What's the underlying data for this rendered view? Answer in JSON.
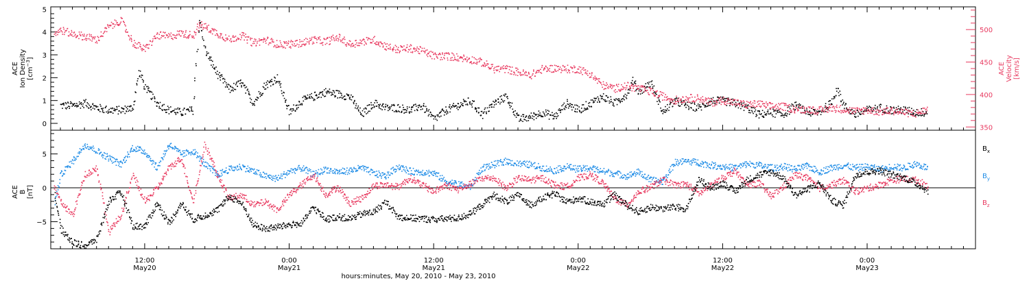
{
  "figure": {
    "xlabel": "hours:minutes, May 20, 2010 - May 23, 2010",
    "x_ticks": [
      {
        "value": 12,
        "time": "12:00",
        "date": "May20"
      },
      {
        "value": 24,
        "time": "0:00",
        "date": "May21"
      },
      {
        "value": 36,
        "time": "12:00",
        "date": "May21"
      },
      {
        "value": 48,
        "time": "0:00",
        "date": "May22"
      },
      {
        "value": 60,
        "time": "12:00",
        "date": "May22"
      },
      {
        "value": 72,
        "time": "0:00",
        "date": "May23"
      }
    ],
    "x_unit": "hours since 2010-05-20 00:00",
    "xlim": [
      4.2,
      81
    ]
  },
  "colors": {
    "black": "#000000",
    "pink": "#e8395f",
    "blue": "#1e8ce6"
  },
  "chart_data": [
    {
      "type": "scatter",
      "panel": "top",
      "ylabel": {
        "line1": "ACE",
        "line2": "Ion Density",
        "unit_base": "[cm",
        "unit_sup": "−3",
        "unit_close": "]"
      },
      "ylabel_right": {
        "line1": "ACE",
        "line2": "Velocity",
        "line3": "[km/s]"
      },
      "ylim": [
        -0.3,
        5.1
      ],
      "yticks": [
        "0",
        "1",
        "2",
        "3",
        "4",
        "5"
      ],
      "ylim_right": [
        345,
        535
      ],
      "yticks_right": [
        "350",
        "400",
        "450",
        "500"
      ],
      "series": [
        {
          "axis": "left",
          "color": "black",
          "x": [
            5,
            6,
            7,
            8,
            9,
            10,
            11,
            11.5,
            12,
            13,
            14,
            15,
            16,
            16.5,
            17,
            18,
            19,
            20,
            21,
            22,
            23,
            24,
            25,
            26,
            27,
            28,
            29,
            30,
            31,
            32,
            33,
            34,
            35,
            36,
            37,
            38,
            39,
            40,
            41,
            42,
            43,
            44,
            45,
            46,
            47,
            48,
            49,
            50,
            51,
            52,
            52.5,
            53,
            54,
            55,
            56,
            57,
            58,
            59,
            60,
            61,
            62,
            63,
            64,
            65,
            66,
            67,
            68,
            69,
            69.5,
            70,
            71,
            72,
            73,
            74,
            75,
            76,
            77
          ],
          "y": [
            0.8,
            0.8,
            0.9,
            0.7,
            0.6,
            0.6,
            0.7,
            2.3,
            1.6,
            0.9,
            0.6,
            0.5,
            0.6,
            4.6,
            3.2,
            2.2,
            1.5,
            1.8,
            0.9,
            1.7,
            2.0,
            0.5,
            1.0,
            1.2,
            1.4,
            1.3,
            1.2,
            0.4,
            0.9,
            0.7,
            0.7,
            0.6,
            0.8,
            0.2,
            0.6,
            0.8,
            1.0,
            0.4,
            0.9,
            1.2,
            0.2,
            0.3,
            0.5,
            0.3,
            0.9,
            0.6,
            0.9,
            1.2,
            0.9,
            1.3,
            1.9,
            1.4,
            1.8,
            0.5,
            1.0,
            0.8,
            0.7,
            1.0,
            1.0,
            0.9,
            0.7,
            0.4,
            0.5,
            0.4,
            0.8,
            0.5,
            0.5,
            0.9,
            1.6,
            0.8,
            0.4,
            0.6,
            0.7,
            0.6,
            0.6,
            0.5,
            0.5
          ]
        },
        {
          "axis": "right",
          "color": "pink",
          "x": [
            4.5,
            5,
            6,
            7,
            8,
            9,
            10,
            11,
            12,
            13,
            14,
            15,
            16,
            16.5,
            17,
            18,
            19,
            20,
            21,
            22,
            23,
            24,
            25,
            26,
            27,
            28,
            29,
            30,
            31,
            32,
            33,
            34,
            35,
            36,
            37,
            38,
            39,
            40,
            41,
            42,
            43,
            44,
            45,
            46,
            47,
            48,
            49,
            50,
            51,
            52,
            53,
            54,
            55,
            56,
            57,
            58,
            59,
            60,
            61,
            62,
            63,
            64,
            65,
            66,
            67,
            68,
            69,
            70,
            71,
            72,
            73,
            74,
            75,
            76,
            77
          ],
          "y": [
            495,
            500,
            494,
            490,
            485,
            505,
            515,
            480,
            470,
            492,
            490,
            495,
            492,
            508,
            505,
            495,
            485,
            492,
            480,
            485,
            478,
            478,
            480,
            485,
            482,
            489,
            478,
            482,
            485,
            475,
            470,
            472,
            468,
            460,
            460,
            458,
            455,
            450,
            440,
            440,
            435,
            430,
            440,
            441,
            440,
            440,
            432,
            415,
            410,
            414,
            410,
            405,
            398,
            392,
            395,
            395,
            388,
            392,
            388,
            385,
            386,
            382,
            382,
            378,
            378,
            376,
            380,
            378,
            375,
            377,
            374,
            376,
            373,
            371,
            378
          ]
        }
      ]
    },
    {
      "type": "scatter",
      "panel": "bottom",
      "ylabel": {
        "line1": "ACE",
        "line2": "B",
        "line3": "[nT]"
      },
      "ylim": [
        -9,
        8.5
      ],
      "yticks": [
        "−5",
        "0",
        "5"
      ],
      "zero_line": true,
      "series": [
        {
          "name": "Bx",
          "name_base": "B",
          "name_sub": "x",
          "color": "black",
          "x": [
            4.5,
            5,
            6,
            7,
            8,
            9,
            10,
            11,
            12,
            13,
            14,
            15,
            16,
            17,
            18,
            19,
            20,
            21,
            22,
            23,
            24,
            25,
            26,
            27,
            28,
            29,
            30,
            31,
            32,
            33,
            34,
            35,
            36,
            37,
            38,
            39,
            40,
            41,
            42,
            43,
            44,
            45,
            46,
            47,
            48,
            49,
            50,
            51,
            52,
            53,
            54,
            55,
            56,
            57,
            58,
            59,
            60,
            61,
            62,
            63,
            64,
            65,
            66,
            67,
            68,
            69,
            70,
            71,
            72,
            73,
            74,
            75,
            76,
            77
          ],
          "y": [
            -1,
            -6,
            -8,
            -8.5,
            -7.5,
            -1.8,
            -0.6,
            -5.6,
            -5.6,
            -2.2,
            -5.2,
            -2.2,
            -4.6,
            -4.0,
            -3.2,
            -1.2,
            -2.2,
            -5.4,
            -6.0,
            -5.7,
            -5.4,
            -5.2,
            -2.8,
            -4.6,
            -4.2,
            -4.5,
            -3.8,
            -3.5,
            -2.0,
            -4.2,
            -4.4,
            -4.5,
            -4.6,
            -4.5,
            -4.4,
            -3.8,
            -2.4,
            -1.0,
            -2.0,
            -1.0,
            -2.5,
            -1.5,
            -0.8,
            -2.0,
            -1.5,
            -2.0,
            -2.4,
            -1.0,
            -2.5,
            -3.5,
            -2.8,
            -3.0,
            -2.8,
            -3.0,
            1.4,
            0.0,
            0.8,
            -0.5,
            1.2,
            2.0,
            2.4,
            1.6,
            -1.0,
            -0.2,
            0.8,
            -1.8,
            -2.5,
            2.0,
            2.4,
            2.6,
            2.0,
            1.6,
            0.8,
            -0.4
          ]
        },
        {
          "name": "By",
          "name_base": "B",
          "name_sub": "y",
          "color": "blue",
          "x": [
            4.5,
            5,
            6,
            7,
            8,
            9,
            10,
            11,
            12,
            13,
            14,
            15,
            16,
            17,
            18,
            19,
            20,
            21,
            22,
            23,
            24,
            25,
            26,
            27,
            28,
            29,
            30,
            31,
            32,
            33,
            34,
            35,
            36,
            37,
            38,
            39,
            40,
            41,
            42,
            43,
            44,
            45,
            46,
            47,
            48,
            49,
            50,
            51,
            52,
            53,
            54,
            55,
            56,
            57,
            58,
            59,
            60,
            61,
            62,
            63,
            64,
            65,
            66,
            67,
            68,
            69,
            70,
            71,
            72,
            73,
            74,
            75,
            76,
            77
          ],
          "y": [
            -2,
            2,
            4,
            6.5,
            5.5,
            4.5,
            3.5,
            6.0,
            5.4,
            3.0,
            6.5,
            5.0,
            5.5,
            3.5,
            2.0,
            2.8,
            3.2,
            2.5,
            1.8,
            1.4,
            2.5,
            3.0,
            2.0,
            2.8,
            2.4,
            2.6,
            3.0,
            2.2,
            1.8,
            3.2,
            2.5,
            2.4,
            2.2,
            1.0,
            0.6,
            0.2,
            3.0,
            3.5,
            4.0,
            3.6,
            3.5,
            3.0,
            2.6,
            3.2,
            2.8,
            3.0,
            2.5,
            2.2,
            1.8,
            2.4,
            1.2,
            1.0,
            3.8,
            4.0,
            3.8,
            3.4,
            3.2,
            3.0,
            3.6,
            3.4,
            3.0,
            3.2,
            2.8,
            3.3,
            2.4,
            3.0,
            3.4,
            3.0,
            3.2,
            2.8,
            3.2,
            3.0,
            3.6,
            3.0
          ]
        },
        {
          "name": "Bz",
          "name_base": "B",
          "name_sub": "z",
          "color": "pink",
          "x": [
            4.5,
            5,
            6,
            7,
            8,
            9,
            10,
            11,
            12,
            13,
            14,
            15,
            16,
            17,
            18,
            19,
            20,
            21,
            22,
            23,
            24,
            25,
            26,
            27,
            28,
            29,
            30,
            31,
            32,
            33,
            34,
            35,
            36,
            37,
            38,
            39,
            40,
            41,
            42,
            43,
            44,
            45,
            46,
            47,
            48,
            49,
            50,
            51,
            52,
            53,
            54,
            55,
            56,
            57,
            58,
            59,
            60,
            61,
            62,
            63,
            64,
            65,
            66,
            67,
            68,
            69,
            70,
            71,
            72,
            73,
            74,
            75,
            76,
            77
          ],
          "y": [
            0,
            -2,
            -4,
            2,
            3,
            -6.5,
            -4,
            2,
            -2,
            0,
            3,
            4.5,
            -2,
            6.5,
            2,
            -1.5,
            -1,
            -2.5,
            -2.0,
            -3.2,
            -1.0,
            0.5,
            2.0,
            -1.0,
            0.2,
            -2.2,
            -1.5,
            0.4,
            0.5,
            0.2,
            1.5,
            0.5,
            -0.5,
            0.5,
            -0.2,
            0.6,
            1.5,
            1.5,
            0.0,
            1.5,
            1.2,
            1.5,
            0.5,
            0.2,
            1.5,
            2.0,
            0.8,
            -1.5,
            -2.5,
            -0.5,
            0.2,
            1.2,
            0.5,
            0.6,
            -0.8,
            0.4,
            1.6,
            2.5,
            0.5,
            0.8,
            -1.2,
            0.2,
            2.0,
            1.5,
            0.0,
            0.5,
            1.2,
            -0.5,
            0.0,
            0.5,
            1.2,
            1.4,
            1.2,
            0.4
          ]
        }
      ]
    }
  ]
}
